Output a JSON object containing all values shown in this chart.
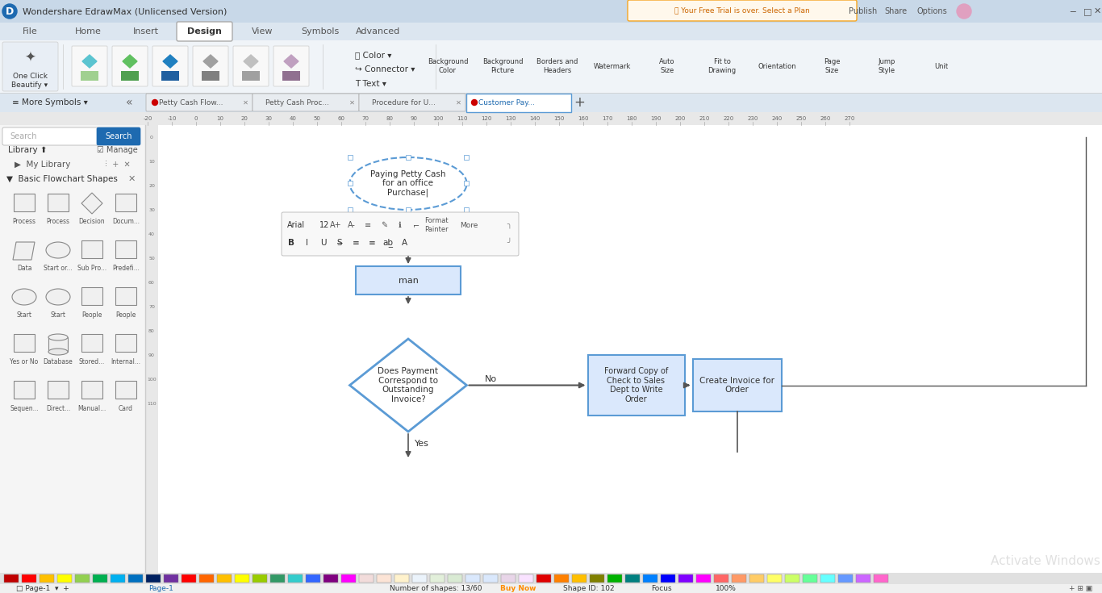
{
  "title": "Wondershare EdrawMax (Unlicensed Version)",
  "bg_color": "#f0f0f0",
  "canvas_color": "#ffffff",
  "sidebar_color": "#f5f5f5",
  "tab_active": "Design",
  "tabs": [
    "File",
    "Home",
    "Insert",
    "Design",
    "View",
    "Symbols",
    "Advanced"
  ],
  "page_tabs": [
    "Petty Cash Flow...",
    "Petty Cash Proc...",
    "Procedure for U...",
    "Customer Pay..."
  ],
  "page_tab_active": "Customer Pay...",
  "flowchart_title_text": "Paying Petty Cash\nfor an office\nPurchase|",
  "process_box_text": "man",
  "diamond_text": "Does Payment\nCorrespond to\nOutstanding\nInvoice?",
  "box1_text": "Forward Copy of\nCheck to Sales\nDept to Write\nOrder",
  "box2_text": "Create Invoice for\nOrder",
  "no_label": "No",
  "yes_label": "Yes",
  "arrow_color": "#333333",
  "shape_border_color": "#5b9bd5",
  "shape_fill_color": "#ffffff",
  "diamond_border_color": "#5b9bd5",
  "ellipse_border_color": "#5b9bd5",
  "ellipse_border_dash": true,
  "toolbar_bg": "#e8e8e8",
  "status_bar_bg": "#f0f0f0",
  "activate_windows_text": "Activate Windows",
  "number_shapes": "Number of shapes: 13/60",
  "buy_now": "Buy Now",
  "shape_id": "Shape ID: 102",
  "focus": "Focus",
  "zoom_level": "100%",
  "page_label": "Page-1",
  "colorbar_colors": [
    "#c00000",
    "#ff0000",
    "#ffc000",
    "#ffff00",
    "#92d050",
    "#00b050",
    "#00b0f0",
    "#0070c0",
    "#002060",
    "#7030a0",
    "#ff0000",
    "#ff6600",
    "#ffc000",
    "#ffff00",
    "#99cc00",
    "#339966",
    "#33cccc",
    "#3366ff",
    "#800080",
    "#ff00ff",
    "#f2dcdb",
    "#fce4d6",
    "#fff2cc",
    "#ebf3fb",
    "#e2efda",
    "#d9ead3",
    "#dae8fc",
    "#dae8fc",
    "#e8d5e8",
    "#f9e2ff",
    "#e00000",
    "#ff8000",
    "#ffbf00",
    "#808000",
    "#00b200",
    "#008080",
    "#0080ff",
    "#0000ff",
    "#8000ff",
    "#ff00ff",
    "#800000",
    "#804000",
    "#808000",
    "#004000",
    "#004080",
    "#000080",
    "#400080",
    "#800040",
    "#808080",
    "#404040"
  ]
}
